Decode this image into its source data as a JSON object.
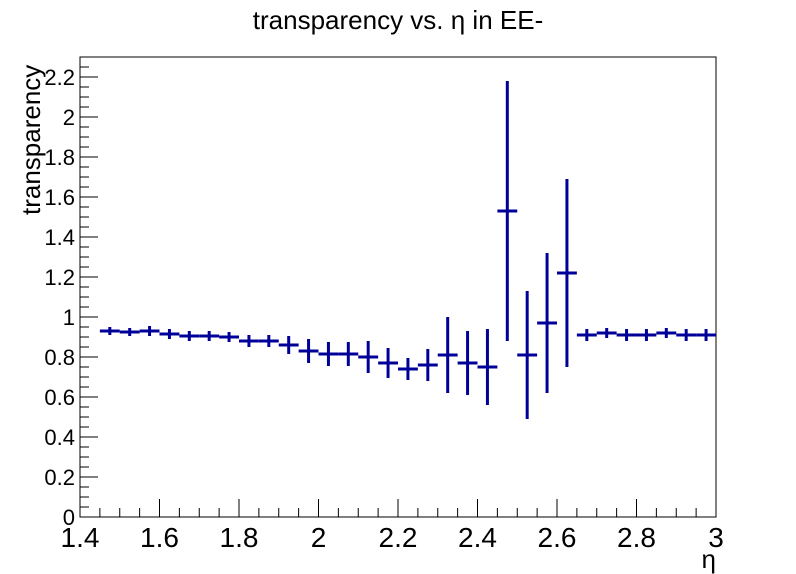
{
  "chart_data": {
    "type": "scatter",
    "title": "transparency vs. η in EE-",
    "xlabel": "η",
    "ylabel": "transparency",
    "xlim": [
      1.4,
      3.0
    ],
    "ylim": [
      0,
      2.3
    ],
    "x_ticks": [
      "1.4",
      "1.6",
      "1.8",
      "2",
      "2.2",
      "2.4",
      "2.6",
      "2.8",
      "3"
    ],
    "y_ticks": [
      "0",
      "0.2",
      "0.4",
      "0.6",
      "0.8",
      "1",
      "1.2",
      "1.4",
      "1.6",
      "1.8",
      "2",
      "2.2"
    ],
    "bin_width": 0.05,
    "color": "#000099",
    "points": [
      {
        "x": 1.475,
        "y": 0.93,
        "err": 0.02
      },
      {
        "x": 1.525,
        "y": 0.925,
        "err": 0.02
      },
      {
        "x": 1.575,
        "y": 0.93,
        "err": 0.025
      },
      {
        "x": 1.625,
        "y": 0.915,
        "err": 0.025
      },
      {
        "x": 1.675,
        "y": 0.905,
        "err": 0.025
      },
      {
        "x": 1.725,
        "y": 0.905,
        "err": 0.025
      },
      {
        "x": 1.775,
        "y": 0.9,
        "err": 0.025
      },
      {
        "x": 1.825,
        "y": 0.88,
        "err": 0.03
      },
      {
        "x": 1.875,
        "y": 0.88,
        "err": 0.03
      },
      {
        "x": 1.925,
        "y": 0.86,
        "err": 0.045
      },
      {
        "x": 1.975,
        "y": 0.83,
        "err": 0.06
      },
      {
        "x": 2.025,
        "y": 0.815,
        "err": 0.06
      },
      {
        "x": 2.075,
        "y": 0.815,
        "err": 0.06
      },
      {
        "x": 2.125,
        "y": 0.8,
        "err": 0.08
      },
      {
        "x": 2.175,
        "y": 0.77,
        "err": 0.075
      },
      {
        "x": 2.225,
        "y": 0.74,
        "err": 0.055
      },
      {
        "x": 2.275,
        "y": 0.76,
        "err": 0.08
      },
      {
        "x": 2.325,
        "y": 0.81,
        "err": 0.19
      },
      {
        "x": 2.375,
        "y": 0.77,
        "err": 0.16
      },
      {
        "x": 2.425,
        "y": 0.75,
        "err": 0.19
      },
      {
        "x": 2.475,
        "y": 1.53,
        "err": 0.65
      },
      {
        "x": 2.525,
        "y": 0.81,
        "err": 0.32
      },
      {
        "x": 2.575,
        "y": 0.97,
        "err": 0.35
      },
      {
        "x": 2.625,
        "y": 1.22,
        "err": 0.47
      },
      {
        "x": 2.675,
        "y": 0.91,
        "err": 0.03
      },
      {
        "x": 2.725,
        "y": 0.92,
        "err": 0.025
      },
      {
        "x": 2.775,
        "y": 0.91,
        "err": 0.03
      },
      {
        "x": 2.825,
        "y": 0.91,
        "err": 0.03
      },
      {
        "x": 2.875,
        "y": 0.92,
        "err": 0.025
      },
      {
        "x": 2.925,
        "y": 0.91,
        "err": 0.03
      },
      {
        "x": 2.975,
        "y": 0.91,
        "err": 0.03
      }
    ]
  }
}
